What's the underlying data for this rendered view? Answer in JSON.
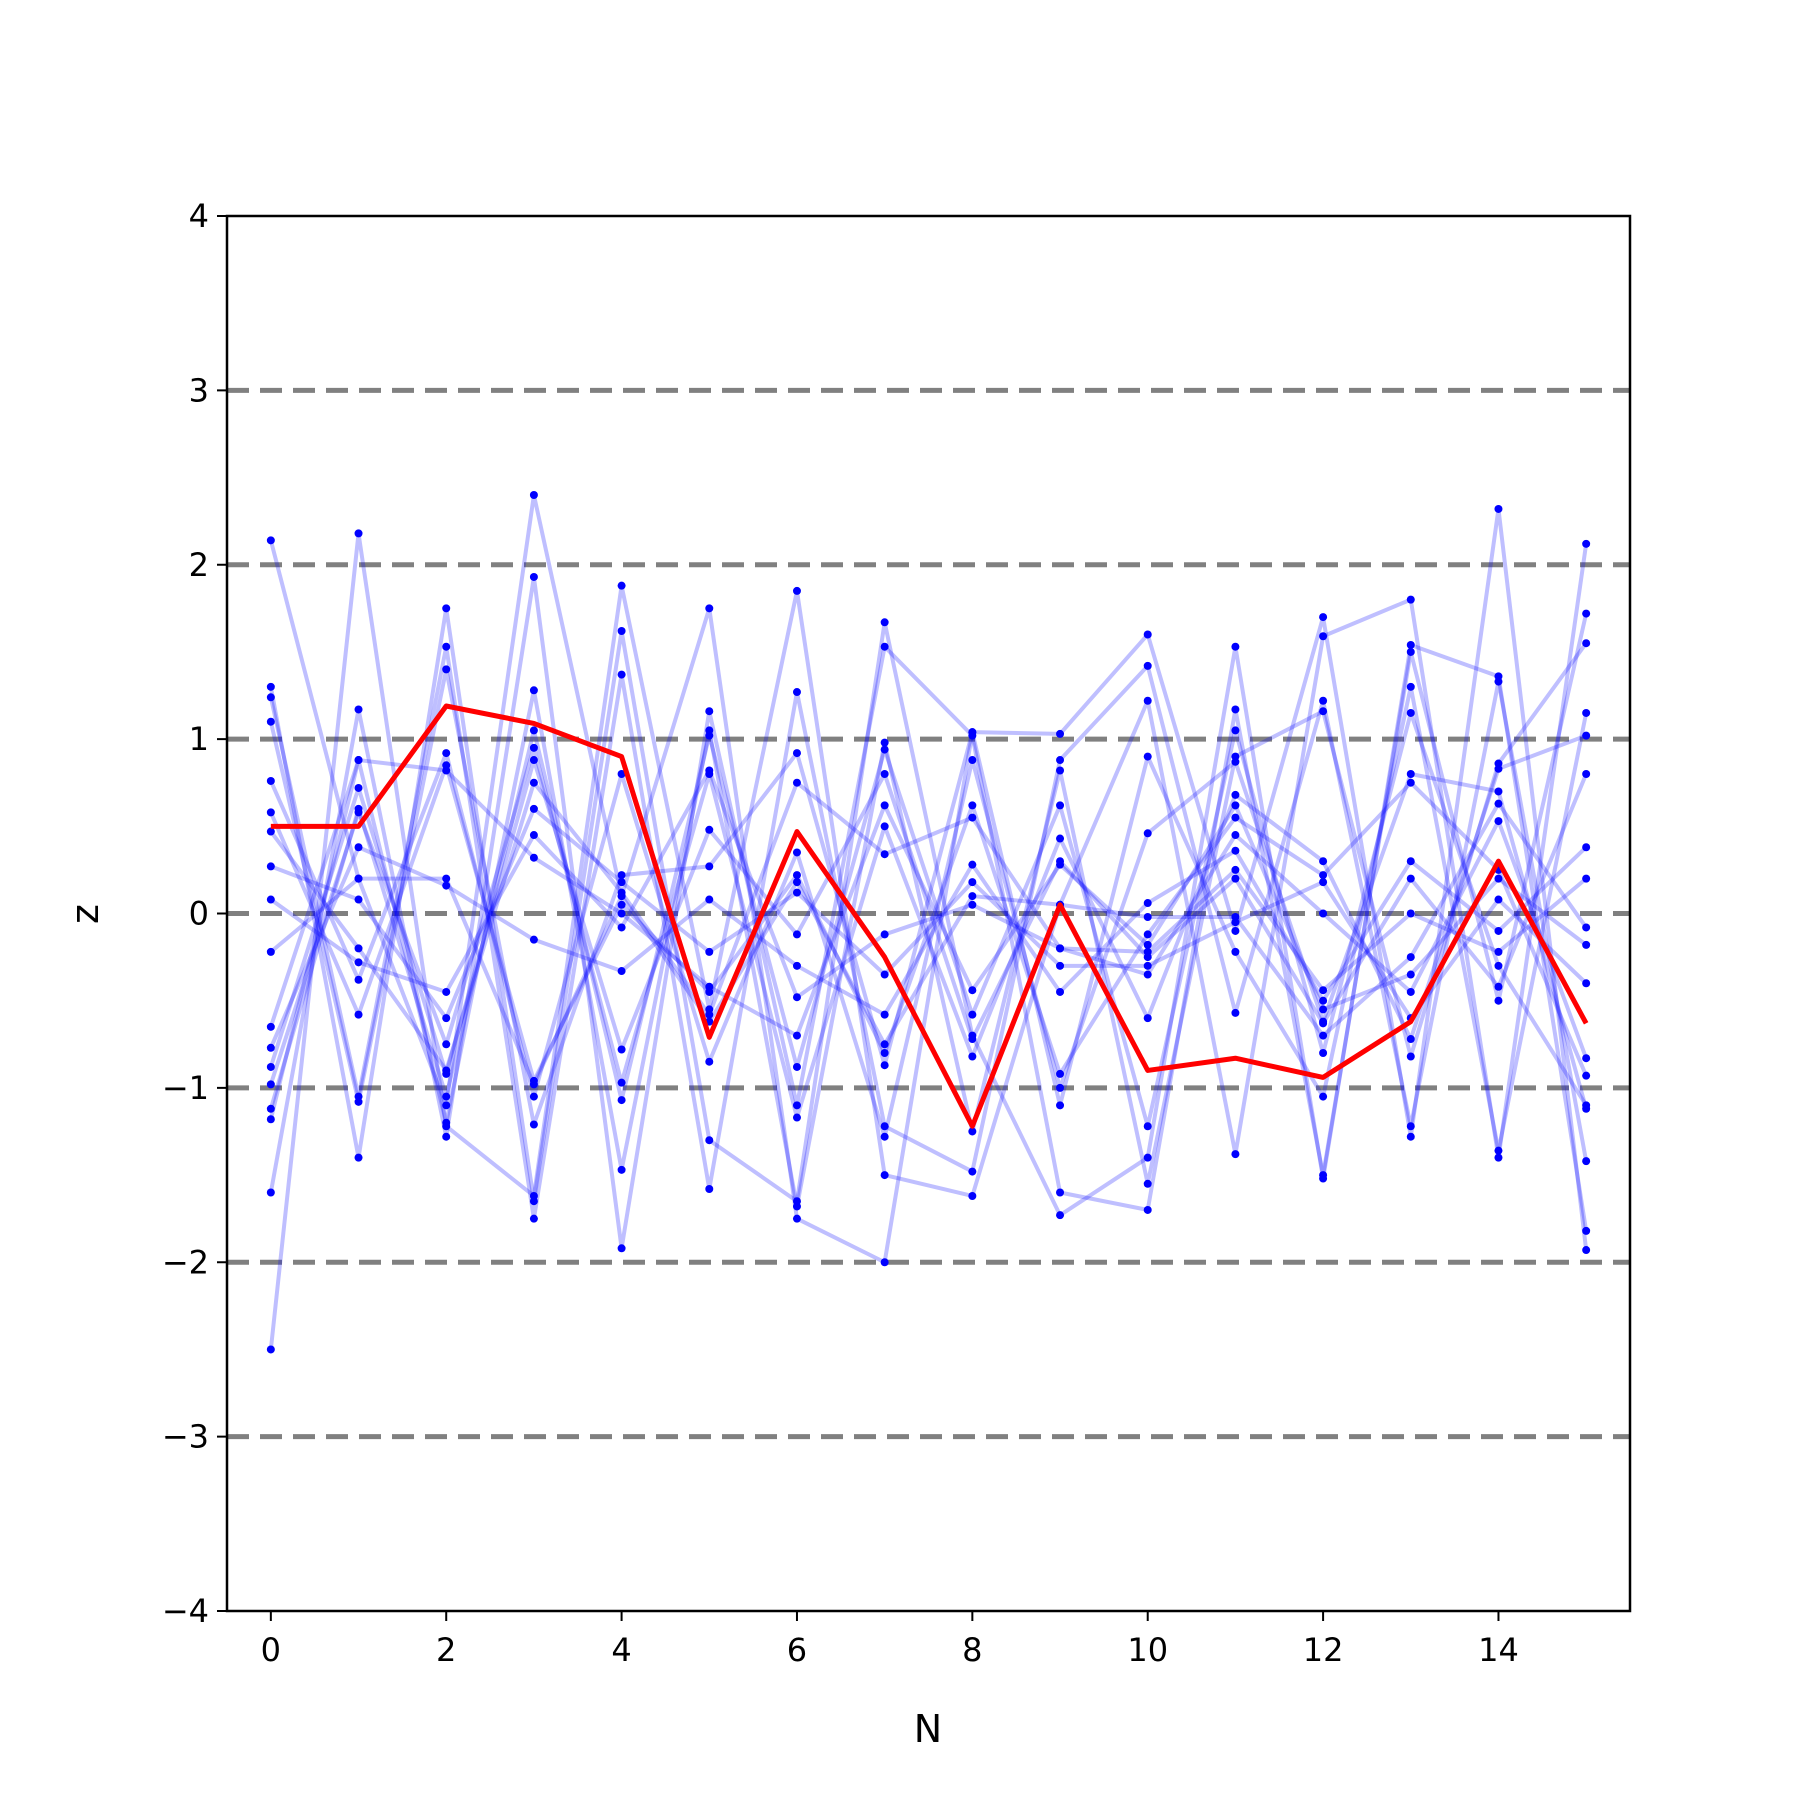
{
  "chart_data": {
    "type": "line",
    "title": "",
    "xlabel": "N",
    "ylabel": "z",
    "xlim": [
      -0.5,
      15.5
    ],
    "ylim": [
      -4,
      4
    ],
    "xticks": [
      0,
      2,
      4,
      6,
      8,
      10,
      12,
      14
    ],
    "yticks": [
      -4,
      -3,
      -2,
      -1,
      0,
      1,
      2,
      3,
      4
    ],
    "ytick_labels": [
      "−4",
      "−3",
      "−2",
      "−1",
      "0",
      "1",
      "2",
      "3",
      "4"
    ],
    "reference_lines": [
      -3,
      -2,
      -1,
      0,
      1,
      2,
      3
    ],
    "reference_line_color": "#808080",
    "sample_series_color": "#0000ff",
    "mean_series_color": "#ff0000",
    "x": [
      0,
      1,
      2,
      3,
      4,
      5,
      6,
      7,
      8,
      9,
      10,
      11,
      12,
      13,
      14,
      15
    ],
    "sample_series": [
      {
        "values": [
          2.14,
          0.2,
          -1.1,
          2.4,
          0.1,
          1.75,
          -1.75,
          -2.0,
          1.04,
          1.03,
          1.6,
          -0.1,
          1.7,
          -1.28,
          2.32,
          -1.93
        ]
      },
      {
        "values": [
          -2.5,
          2.18,
          -1.22,
          -1.62,
          1.88,
          -0.55,
          1.85,
          -1.5,
          -1.62,
          0.05,
          1.22,
          -1.38,
          1.59,
          1.8,
          -1.4,
          2.12
        ]
      },
      {
        "values": [
          1.3,
          -1.4,
          1.75,
          -1.65,
          1.62,
          -1.3,
          -1.65,
          1.67,
          -0.7,
          -1.73,
          -1.4,
          1.53,
          -1.52,
          1.54,
          1.36,
          -1.82
        ]
      },
      {
        "values": [
          -1.6,
          1.17,
          -1.28,
          1.93,
          -1.92,
          1.16,
          -1.1,
          1.53,
          1.02,
          -1.6,
          -1.7,
          1.17,
          -1.5,
          1.5,
          -0.5,
          1.72
        ]
      },
      {
        "values": [
          1.24,
          -1.05,
          1.53,
          -1.75,
          1.37,
          -1.58,
          1.27,
          -1.22,
          -1.48,
          0.88,
          1.42,
          -0.57,
          1.22,
          -1.22,
          1.33,
          -1.42
        ]
      },
      {
        "values": [
          -1.18,
          0.88,
          -1.2,
          1.28,
          -1.47,
          1.05,
          -1.68,
          0.98,
          -1.25,
          0.82,
          -1.55,
          0.9,
          1.16,
          -0.82,
          0.86,
          1.55
        ]
      },
      {
        "values": [
          1.1,
          -1.08,
          1.4,
          -1.21,
          0.22,
          0.27,
          0.92,
          -0.87,
          1.04,
          -1.1,
          0.9,
          -0.22,
          -1.05,
          1.3,
          -1.36,
          1.15
        ]
      },
      {
        "values": [
          -1.12,
          0.6,
          -1.05,
          1.05,
          -1.07,
          1.02,
          -0.88,
          0.94,
          -0.58,
          0.62,
          -1.22,
          1.05,
          -0.8,
          1.15,
          -0.3,
          -1.1
        ]
      },
      {
        "values": [
          0.76,
          -0.38,
          0.92,
          -1.05,
          0.8,
          -0.85,
          0.35,
          -1.28,
          0.88,
          -1.0,
          0.46,
          0.87,
          -0.62,
          0.8,
          0.7,
          -1.12
        ]
      },
      {
        "values": [
          -0.98,
          0.58,
          -0.75,
          0.95,
          -0.97,
          0.8,
          -1.17,
          0.5,
          -0.82,
          0.43,
          -0.6,
          0.68,
          0.3,
          -0.72,
          0.83,
          1.02
        ]
      },
      {
        "values": [
          0.58,
          -0.58,
          0.85,
          -0.96,
          0.05,
          -0.45,
          0.22,
          -0.8,
          0.62,
          -0.92,
          -0.12,
          0.55,
          0.22,
          0.75,
          0.25,
          -0.93
        ]
      },
      {
        "values": [
          -0.88,
          0.72,
          -0.92,
          0.88,
          -0.78,
          0.48,
          -0.12,
          0.8,
          -0.72,
          0.3,
          -0.25,
          0.2,
          -0.63,
          0.2,
          -0.42,
          0.8
        ]
      },
      {
        "values": [
          0.47,
          -0.2,
          -0.9,
          0.75,
          0.12,
          -0.58,
          0.75,
          0.34,
          0.55,
          -0.2,
          -0.35,
          0.45,
          0.0,
          -0.45,
          0.53,
          -0.83
        ]
      },
      {
        "values": [
          -0.77,
          0.38,
          0.16,
          -0.15,
          -0.33,
          0.08,
          -0.3,
          -0.58,
          0.28,
          -0.45,
          0.06,
          0.36,
          -0.5,
          0.3,
          -0.1,
          0.38
        ]
      },
      {
        "values": [
          0.27,
          0.08,
          -0.6,
          0.6,
          0.18,
          -0.22,
          0.12,
          -0.35,
          0.18,
          -0.3,
          -0.3,
          -0.05,
          0.18,
          -0.6,
          0.08,
          -0.4
        ]
      },
      {
        "values": [
          -0.65,
          0.88,
          0.82,
          0.32,
          0.0,
          -0.42,
          -0.7,
          0.62,
          -0.44,
          0.28,
          -0.18,
          0.62,
          -0.55,
          -0.35,
          0.2,
          -0.18
        ]
      },
      {
        "values": [
          0.08,
          -0.28,
          -0.45,
          0.45,
          -0.08,
          0.82,
          -0.48,
          -0.12,
          0.05,
          -0.2,
          -0.22,
          0.25,
          -0.44,
          0.0,
          -0.22,
          0.2
        ]
      },
      {
        "values": [
          -0.22,
          0.2,
          0.2,
          -0.98,
          0.1,
          -0.62,
          0.18,
          -0.75,
          0.1,
          0.05,
          -0.02,
          -0.02,
          -0.7,
          -0.25,
          0.63,
          -0.08
        ]
      }
    ],
    "mean_series": {
      "values": [
        0.5,
        0.5,
        1.19,
        1.09,
        0.9,
        -0.71,
        0.47,
        -0.25,
        -1.22,
        0.05,
        -0.9,
        -0.83,
        -0.94,
        -0.62,
        0.3,
        -0.63
      ]
    }
  }
}
